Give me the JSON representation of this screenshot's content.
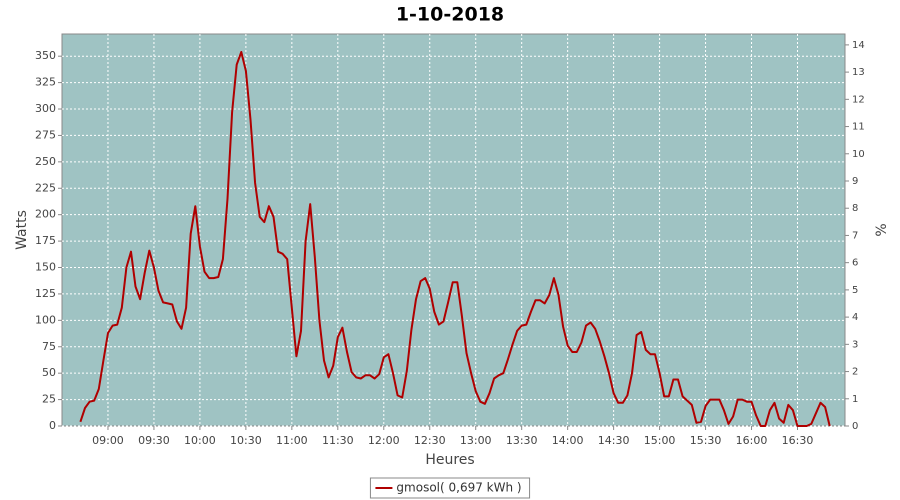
{
  "chart_data": {
    "type": "line",
    "title": "1-10-2018",
    "x_label": "Heures",
    "y_label": "Watts",
    "y2_label": "%",
    "x": [
      "08:42",
      "08:45",
      "08:48",
      "08:51",
      "08:54",
      "08:57",
      "09:00",
      "09:03",
      "09:06",
      "09:09",
      "09:12",
      "09:15",
      "09:18",
      "09:21",
      "09:24",
      "09:27",
      "09:30",
      "09:33",
      "09:36",
      "09:39",
      "09:42",
      "09:45",
      "09:48",
      "09:51",
      "09:54",
      "09:57",
      "10:00",
      "10:03",
      "10:06",
      "10:09",
      "10:12",
      "10:15",
      "10:18",
      "10:21",
      "10:24",
      "10:27",
      "10:30",
      "10:33",
      "10:36",
      "10:39",
      "10:42",
      "10:45",
      "10:48",
      "10:51",
      "10:54",
      "10:57",
      "11:00",
      "11:03",
      "11:06",
      "11:09",
      "11:12",
      "11:15",
      "11:18",
      "11:21",
      "11:24",
      "11:27",
      "11:30",
      "11:33",
      "11:36",
      "11:39",
      "11:42",
      "11:45",
      "11:48",
      "11:51",
      "11:54",
      "11:57",
      "12:00",
      "12:03",
      "12:06",
      "12:09",
      "12:12",
      "12:15",
      "12:18",
      "12:21",
      "12:24",
      "12:27",
      "12:30",
      "12:33",
      "12:36",
      "12:39",
      "12:42",
      "12:45",
      "12:48",
      "12:51",
      "12:54",
      "12:57",
      "13:00",
      "13:03",
      "13:06",
      "13:09",
      "13:12",
      "13:15",
      "13:18",
      "13:21",
      "13:24",
      "13:27",
      "13:30",
      "13:33",
      "13:36",
      "13:39",
      "13:42",
      "13:45",
      "13:48",
      "13:51",
      "13:54",
      "13:57",
      "14:00",
      "14:03",
      "14:06",
      "14:09",
      "14:12",
      "14:15",
      "14:18",
      "14:21",
      "14:24",
      "14:27",
      "14:30",
      "14:33",
      "14:36",
      "14:39",
      "14:42",
      "14:45",
      "14:48",
      "14:51",
      "14:54",
      "14:57",
      "15:00",
      "15:03",
      "15:06",
      "15:09",
      "15:12",
      "15:15",
      "15:18",
      "15:21",
      "15:24",
      "15:27",
      "15:30",
      "15:33",
      "15:36",
      "15:39",
      "15:42",
      "15:45",
      "15:48",
      "15:51",
      "15:54",
      "15:57",
      "16:00",
      "16:03",
      "16:06",
      "16:09",
      "16:12",
      "16:15",
      "16:18",
      "16:21",
      "16:24",
      "16:27",
      "16:30",
      "16:33",
      "16:36",
      "16:39",
      "16:42",
      "16:45",
      "16:48",
      "16:51"
    ],
    "series": [
      {
        "name": "gmosol( 0,697 kWh )",
        "color": "#b00000",
        "values": [
          4,
          17,
          23,
          24,
          35,
          62,
          88,
          95,
          96,
          112,
          150,
          165,
          132,
          120,
          145,
          166,
          150,
          128,
          117,
          116,
          115,
          99,
          92,
          112,
          182,
          208,
          170,
          146,
          140,
          140,
          141,
          158,
          215,
          297,
          342,
          354,
          336,
          290,
          230,
          198,
          193,
          208,
          198,
          165,
          163,
          158,
          112,
          66,
          90,
          175,
          210,
          160,
          100,
          62,
          46,
          57,
          84,
          93,
          70,
          51,
          46,
          45,
          48,
          48,
          45,
          49,
          65,
          68,
          50,
          29,
          27,
          52,
          91,
          120,
          137,
          140,
          130,
          108,
          96,
          99,
          117,
          136,
          136,
          104,
          69,
          50,
          33,
          23,
          21,
          31,
          45,
          48,
          50,
          63,
          77,
          90,
          95,
          96,
          108,
          119,
          119,
          116,
          124,
          140,
          124,
          94,
          76,
          70,
          70,
          79,
          95,
          98,
          92,
          80,
          66,
          50,
          31,
          22,
          22,
          29,
          50,
          86,
          89,
          72,
          68,
          68,
          50,
          28,
          28,
          44,
          44,
          28,
          24,
          20,
          3,
          4,
          19,
          25,
          25,
          25,
          15,
          2,
          9,
          25,
          25,
          23,
          23,
          10,
          0,
          0,
          15,
          22,
          7,
          3,
          20,
          15,
          0,
          0,
          0,
          2,
          12,
          22,
          18,
          0
        ]
      }
    ],
    "xlim": [
      "08:30",
      "17:01"
    ],
    "xticks": [
      "09:00",
      "09:30",
      "10:00",
      "10:30",
      "11:00",
      "11:30",
      "12:00",
      "12:30",
      "13:00",
      "13:30",
      "14:00",
      "14:30",
      "15:00",
      "15:30",
      "16:00",
      "16:30"
    ],
    "ylim": [
      0,
      371
    ],
    "yticks": [
      0,
      25,
      50,
      75,
      100,
      125,
      150,
      175,
      200,
      225,
      250,
      275,
      300,
      325,
      350
    ],
    "y2lim": [
      0,
      14.4
    ],
    "y2ticks": [
      0,
      1,
      2,
      3,
      4,
      5,
      6,
      7,
      8,
      9,
      10,
      11,
      12,
      13,
      14
    ],
    "grid": true,
    "plot_background": "#9fc3c3",
    "legend": "bottom"
  }
}
